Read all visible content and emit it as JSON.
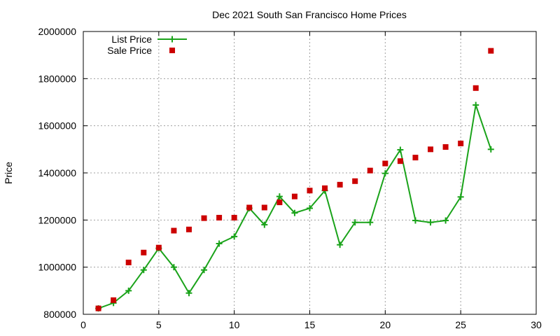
{
  "chart_data": {
    "type": "scatter",
    "title": "Dec 2021 South San Francisco Home Prices",
    "xlabel": "",
    "ylabel": "Price",
    "xlim": [
      0,
      30
    ],
    "ylim": [
      800000,
      2000000
    ],
    "x_ticks": [
      "0",
      "5",
      "10",
      "15",
      "20",
      "25",
      "30"
    ],
    "y_ticks": [
      "800000",
      "1000000",
      "1200000",
      "1400000",
      "1600000",
      "1800000",
      "2000000"
    ],
    "grid": true,
    "legend_position": "top-left",
    "x": [
      1,
      2,
      3,
      4,
      5,
      6,
      7,
      8,
      9,
      10,
      11,
      12,
      13,
      14,
      15,
      16,
      17,
      18,
      19,
      20,
      21,
      22,
      23,
      24,
      25,
      26,
      27
    ],
    "series": [
      {
        "name": "List Price",
        "style": "line-plus",
        "color": "#1aa31a",
        "values": [
          825000,
          848000,
          900000,
          988000,
          1080000,
          1000000,
          890000,
          988000,
          1100000,
          1130000,
          1250000,
          1180000,
          1300000,
          1230000,
          1250000,
          1325000,
          1095000,
          1190000,
          1190000,
          1398000,
          1498000,
          1198000,
          1190000,
          1198000,
          1298000,
          1688000,
          1500000
        ]
      },
      {
        "name": "Sale Price",
        "style": "square",
        "color": "#cc0000",
        "values": [
          825000,
          860000,
          1020000,
          1062000,
          1083000,
          1155000,
          1160000,
          1208000,
          1210000,
          1210000,
          1253000,
          1253000,
          1275000,
          1300000,
          1325000,
          1335000,
          1350000,
          1365000,
          1410000,
          1440000,
          1450000,
          1465000,
          1500000,
          1510000,
          1525000,
          1760000,
          1918000
        ]
      }
    ]
  }
}
